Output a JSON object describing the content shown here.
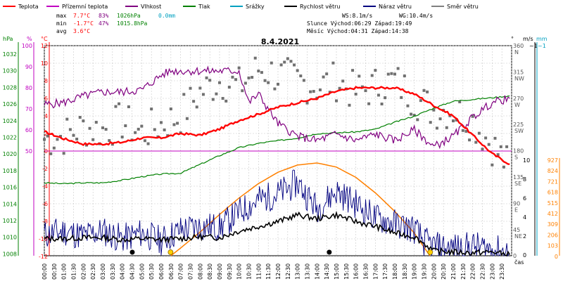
{
  "legend": [
    {
      "label": "Teplota",
      "color": "#ff0000"
    },
    {
      "label": "Přízemní teplota",
      "color": "#c000c0"
    },
    {
      "label": "Vlhkost",
      "color": "#800080"
    },
    {
      "label": "Tlak",
      "color": "#008000"
    },
    {
      "label": "Srážky",
      "color": "#00a0c0"
    },
    {
      "label": "Rychlost větru",
      "color": "#000000"
    },
    {
      "label": "Náraz větru",
      "color": "#000080"
    },
    {
      "label": "Směr větru",
      "color": "#808080"
    }
  ],
  "stats": {
    "max_label": "max",
    "max_temp": "7.7°C",
    "max_hum": "83%",
    "max_press": "1026hPa",
    "rain": "0.0mm",
    "min_label": "min",
    "min_temp": "-1.7°C",
    "min_hum": "47%",
    "min_press": "1015.8hPa",
    "avg_label": "avg",
    "avg_temp": "3.6°C"
  },
  "wind_info": {
    "ws": "WS:8.1m/s",
    "wg": "WG:10.4m/s",
    "sun": "Slunce Východ:06:29   Západ:19:49",
    "moon": "Měsíc  Východ:04:31   Západ:14:38"
  },
  "chart_data": {
    "type": "line",
    "title": "8.4.2021",
    "xlabel": "čas",
    "x_ticks": [
      "00:00",
      "00:30",
      "01:00",
      "01:30",
      "02:00",
      "02:30",
      "03:00",
      "03:30",
      "04:00",
      "04:30",
      "05:00",
      "05:30",
      "06:00",
      "06:30",
      "07:00",
      "07:30",
      "08:00",
      "08:30",
      "09:00",
      "09:30",
      "10:00",
      "10:30",
      "11:00",
      "11:30",
      "12:00",
      "12:30",
      "13:00",
      "13:30",
      "14:00",
      "14:30",
      "15:00",
      "15:30",
      "16:00",
      "16:30",
      "17:00",
      "17:30",
      "18:00",
      "18:30",
      "19:00",
      "19:30",
      "20:00",
      "20:30",
      "21:00",
      "21:30",
      "22:00",
      "22:30",
      "23:00",
      "23:30"
    ],
    "axes": {
      "hpa": {
        "label": "hPa",
        "ticks": [
          "1032",
          "1030",
          "1028",
          "1026",
          "1024",
          "1022",
          "1020",
          "1018",
          "1016",
          "1014",
          "1012",
          "1010",
          "1008"
        ],
        "range": [
          1008,
          1034
        ]
      },
      "hum": {
        "label": "%",
        "ticks": [
          "100",
          "90",
          "80",
          "70",
          "60",
          "50"
        ],
        "range": [
          50,
          105
        ]
      },
      "temp": {
        "label": "°C",
        "ticks": [
          "12",
          "10",
          "8",
          "6",
          "4",
          "2",
          "0",
          "-2",
          "-4",
          "-6",
          "-8",
          "-10",
          "-12"
        ],
        "range": [
          -12,
          14
        ]
      },
      "dir": {
        "label": "°",
        "ticks": [
          "360",
          "315",
          "270",
          "225",
          "180",
          "135",
          "90",
          "45",
          "0"
        ],
        "dir_labels": [
          "N",
          "NW",
          "W",
          "SW",
          "S",
          "SE",
          "E",
          "NE",
          ""
        ]
      },
      "wind": {
        "label": "m/s",
        "ticks": [
          "10",
          "8",
          "6",
          "4",
          "2",
          "0"
        ],
        "top": "~1"
      },
      "mm": {
        "label": "mm"
      },
      "solar": {
        "ticks": [
          "927",
          "824",
          "721",
          "618",
          "515",
          "412",
          "309",
          "206",
          "103",
          "0"
        ]
      }
    },
    "series": [
      {
        "name": "Teplota",
        "color": "#ff0000",
        "x": [
          0,
          1,
          2,
          3,
          4,
          5,
          6,
          7,
          8,
          9,
          10,
          11,
          12,
          13,
          14,
          15,
          16,
          17,
          18,
          19,
          20,
          21,
          22,
          23,
          23.9
        ],
        "values": [
          2.2,
          1.4,
          0.8,
          0.8,
          1.0,
          1.5,
          1.5,
          2.0,
          1.8,
          2.5,
          3.5,
          4.2,
          5.0,
          5.5,
          6.0,
          6.8,
          7.2,
          7.2,
          7.2,
          6.5,
          5.2,
          4.0,
          1.8,
          -0.3,
          -1.5
        ]
      },
      {
        "name": "Vlhkost",
        "color": "#800080",
        "x": [
          0,
          1,
          2,
          3,
          4,
          5,
          6,
          6.5,
          7,
          8,
          10,
          10.5,
          11,
          12,
          13,
          14,
          15,
          16,
          17,
          18,
          19,
          20,
          21,
          22,
          23,
          23.9
        ],
        "values": [
          72,
          73,
          76,
          78,
          78,
          79,
          86,
          88,
          88,
          88,
          88,
          73,
          77,
          63,
          57,
          55,
          58,
          55,
          58,
          55,
          60,
          52,
          57,
          66,
          73,
          75
        ]
      },
      {
        "name": "Tlak",
        "color": "#008000",
        "x": [
          0,
          1,
          2,
          3,
          4,
          5,
          6,
          7,
          8,
          9,
          10,
          11,
          12,
          13,
          14,
          15,
          16,
          17,
          18,
          19,
          20,
          21,
          22,
          23,
          23.9
        ],
        "values": [
          1016.3,
          1016.2,
          1016.3,
          1016.3,
          1016.6,
          1017.0,
          1017.3,
          1017.4,
          1018.4,
          1019.4,
          1020.3,
          1020.8,
          1021.1,
          1021.4,
          1021.9,
          1022.0,
          1022.1,
          1022.4,
          1023.2,
          1023.9,
          1024.8,
          1025.6,
          1025.8,
          1026.0,
          1026.2
        ]
      },
      {
        "name": "Rychlost větru",
        "color": "#000000",
        "x": [
          0,
          1,
          2,
          3,
          4,
          5,
          6,
          7,
          8,
          9,
          10,
          11,
          12,
          13,
          14,
          15,
          16,
          17,
          18,
          19,
          19.5,
          20,
          21,
          22,
          23,
          23.9
        ],
        "values": [
          1.8,
          1.8,
          1.9,
          1.9,
          1.7,
          1.8,
          1.7,
          1.8,
          2.0,
          1.9,
          2.6,
          3.1,
          3.6,
          4.3,
          3.9,
          4.3,
          3.6,
          3.1,
          2.4,
          2.0,
          1.3,
          0.5,
          0.4,
          0.3,
          0.4,
          0.1
        ]
      },
      {
        "name": "Náraz větru",
        "color": "#000080",
        "x": [
          0,
          1,
          2,
          3,
          4,
          5,
          6,
          7,
          8,
          9,
          10,
          11,
          12,
          13,
          14,
          15,
          16,
          17,
          18,
          19,
          19.5,
          20,
          21,
          22,
          23,
          23.9
        ],
        "values": [
          2.2,
          2.6,
          2.1,
          2.6,
          1.8,
          2.4,
          1.6,
          2.7,
          3.1,
          3.0,
          4.6,
          5.9,
          6.5,
          7.7,
          5.0,
          6.8,
          5.5,
          4.0,
          3.4,
          2.8,
          1.5,
          1.0,
          0.8,
          1.0,
          0.7,
          0.3
        ]
      },
      {
        "name": "Směr větru",
        "color": "#707070",
        "x": [
          0,
          1,
          2,
          3,
          4,
          5,
          6,
          7,
          8,
          9,
          10,
          11,
          12,
          13,
          14,
          15,
          16,
          17,
          18,
          19,
          20,
          21,
          22,
          23,
          23.9
        ],
        "values": [
          200,
          205,
          220,
          215,
          230,
          210,
          225,
          240,
          280,
          300,
          290,
          320,
          310,
          300,
          290,
          300,
          280,
          290,
          300,
          270,
          250,
          250,
          230,
          190,
          150
        ]
      },
      {
        "name": "Sluneční záření",
        "color": "#ff8000",
        "x": [
          6.5,
          7,
          8,
          9,
          10,
          11,
          12,
          13,
          14,
          15,
          16,
          17,
          18,
          19,
          19.8
        ],
        "values": [
          0,
          75,
          230,
          400,
          560,
          700,
          810,
          880,
          900,
          860,
          760,
          610,
          430,
          220,
          0
        ]
      }
    ],
    "markers": {
      "sun_rise": "06:29",
      "sun_set": "19:49",
      "moon_rise": "04:31",
      "moon_set": "14:38"
    }
  }
}
